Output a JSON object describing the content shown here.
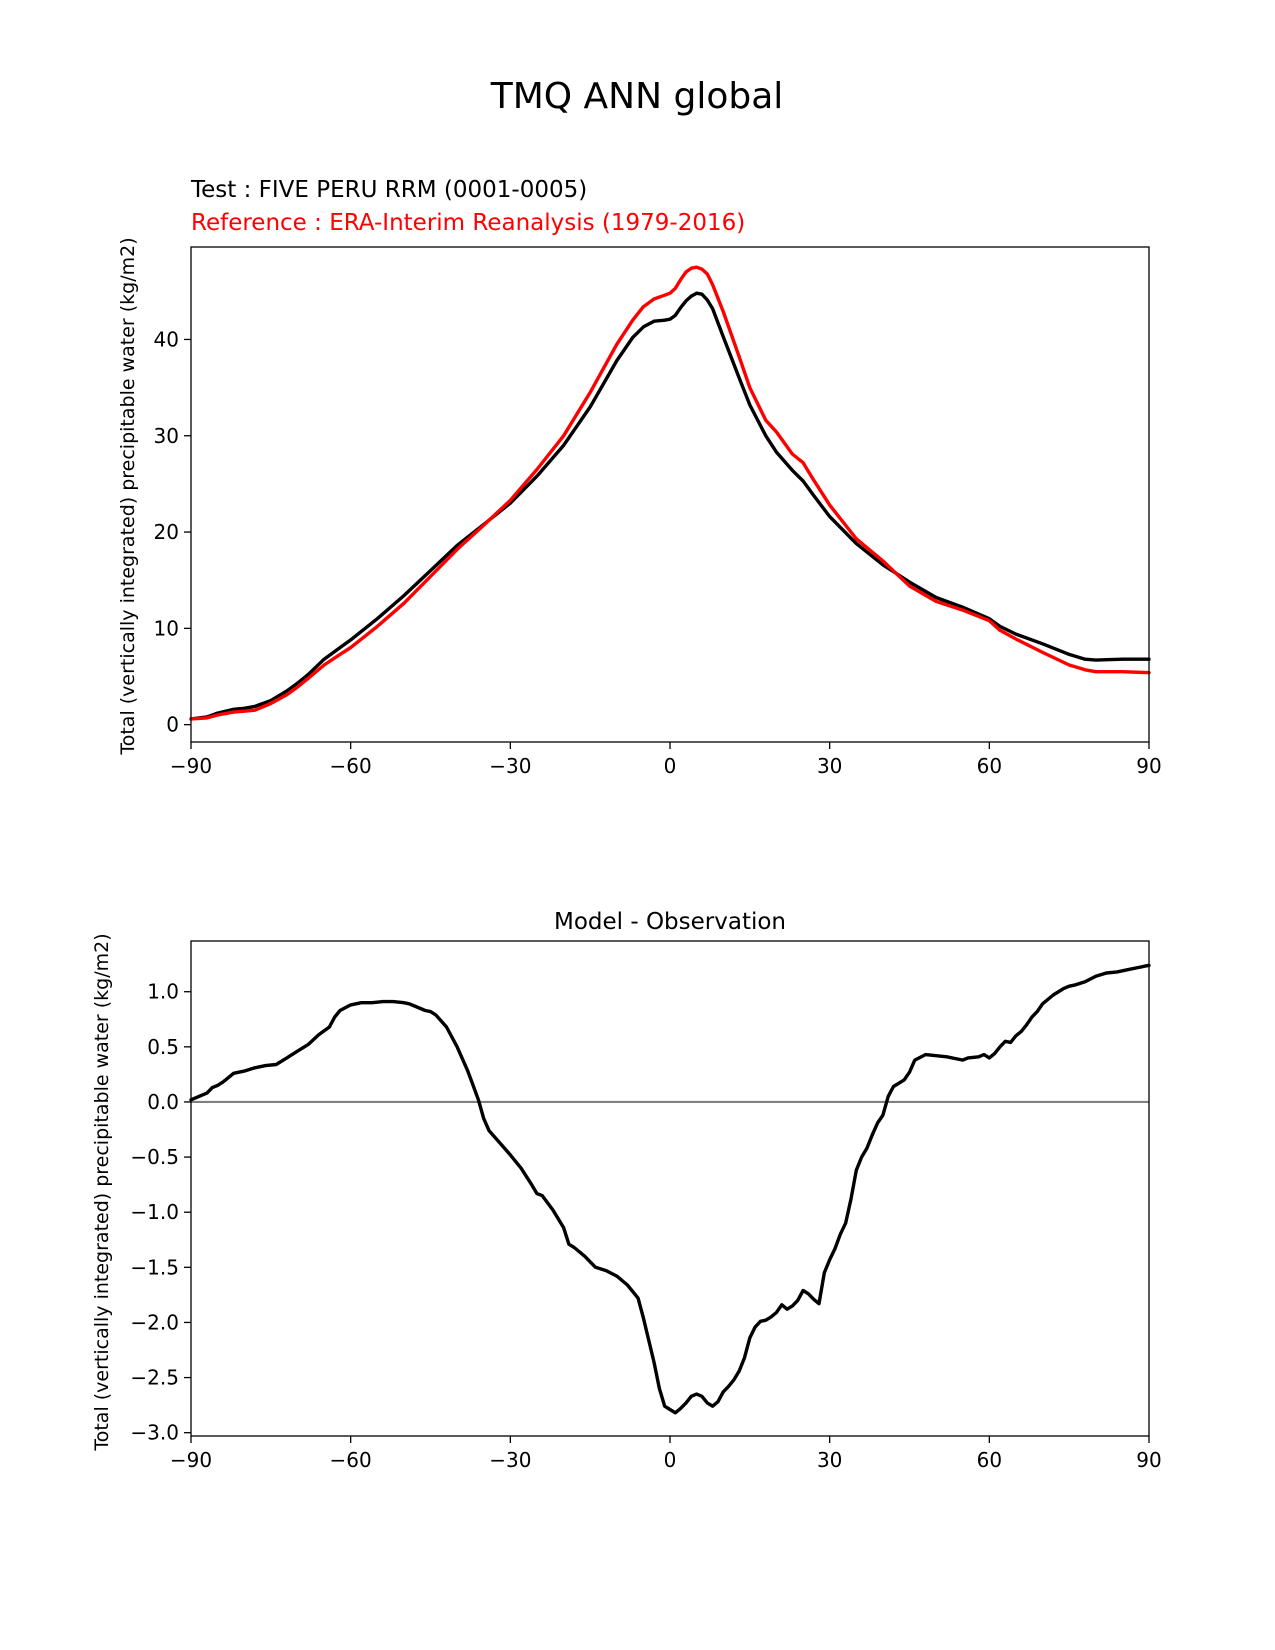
{
  "figure": {
    "title": "TMQ ANN global"
  },
  "chart_data": [
    {
      "type": "line",
      "test_label": "Test : FIVE PERU RRM (0001-0005)",
      "reference_label": "Reference : ERA-Interim Reanalysis (1979-2016)",
      "xlabel": "",
      "ylabel": "Total (vertically integrated) precipitable water (kg/m2)",
      "xlim": [
        -90,
        90
      ],
      "ylim": [
        -1.8,
        49.6
      ],
      "xticks": [
        -90,
        -60,
        -30,
        0,
        30,
        60,
        90
      ],
      "xtick_labels": [
        "−90",
        "−60",
        "−30",
        "0",
        "30",
        "60",
        "90"
      ],
      "yticks": [
        0,
        10,
        20,
        30,
        40
      ],
      "ytick_labels": [
        "0",
        "10",
        "20",
        "30",
        "40"
      ],
      "series": [
        {
          "name": "Test",
          "color": "#000000",
          "x": [
            -90,
            -87,
            -85,
            -82,
            -80,
            -78,
            -75,
            -72,
            -70,
            -68,
            -65,
            -62,
            -60,
            -55,
            -50,
            -45,
            -40,
            -35,
            -30,
            -25,
            -20,
            -15,
            -10,
            -7,
            -5,
            -3,
            -1,
            0,
            1,
            2,
            3,
            4,
            5,
            6,
            7,
            8,
            10,
            13,
            15,
            18,
            20,
            23,
            25,
            27,
            30,
            35,
            40,
            45,
            50,
            55,
            60,
            62,
            65,
            70,
            75,
            78,
            80,
            85,
            90
          ],
          "y": [
            0.6,
            0.8,
            1.2,
            1.6,
            1.7,
            1.9,
            2.5,
            3.5,
            4.3,
            5.2,
            6.8,
            8.0,
            8.8,
            11.0,
            13.4,
            16.0,
            18.6,
            20.8,
            23.0,
            25.8,
            29.0,
            33.0,
            37.8,
            40.2,
            41.3,
            41.9,
            42.0,
            42.1,
            42.5,
            43.3,
            44.0,
            44.5,
            44.8,
            44.7,
            44.1,
            43.2,
            40.3,
            36.0,
            33.2,
            30.0,
            28.3,
            26.4,
            25.3,
            23.8,
            21.6,
            18.8,
            16.6,
            14.8,
            13.2,
            12.2,
            11.0,
            10.2,
            9.4,
            8.4,
            7.3,
            6.8,
            6.7,
            6.8,
            6.8
          ]
        },
        {
          "name": "Reference",
          "color": "#ff0000",
          "x": [
            -90,
            -87,
            -85,
            -82,
            -80,
            -78,
            -75,
            -72,
            -70,
            -68,
            -65,
            -62,
            -60,
            -55,
            -50,
            -45,
            -40,
            -35,
            -30,
            -25,
            -20,
            -15,
            -10,
            -7,
            -5,
            -3,
            -1,
            0,
            1,
            2,
            3,
            4,
            5,
            6,
            7,
            8,
            10,
            13,
            15,
            18,
            20,
            23,
            25,
            27,
            30,
            35,
            40,
            45,
            50,
            55,
            60,
            62,
            65,
            70,
            75,
            78,
            80,
            85,
            90
          ],
          "y": [
            0.6,
            0.7,
            1.0,
            1.3,
            1.4,
            1.5,
            2.2,
            3.1,
            3.9,
            4.8,
            6.2,
            7.3,
            8.0,
            10.2,
            12.6,
            15.4,
            18.2,
            20.7,
            23.3,
            26.5,
            30.0,
            34.5,
            39.5,
            42.0,
            43.4,
            44.2,
            44.6,
            44.8,
            45.3,
            46.2,
            47.0,
            47.4,
            47.5,
            47.3,
            46.8,
            45.7,
            42.9,
            38.2,
            35.0,
            31.6,
            30.4,
            28.1,
            27.2,
            25.4,
            22.8,
            19.3,
            17.0,
            14.4,
            12.8,
            11.9,
            10.8,
            9.8,
            8.9,
            7.5,
            6.2,
            5.7,
            5.5,
            5.5,
            5.4
          ]
        }
      ]
    },
    {
      "type": "line",
      "title": "Model - Observation",
      "xlabel": "",
      "ylabel": "Total (vertically integrated) precipitable water (kg/m2)",
      "xlim": [
        -90,
        90
      ],
      "ylim": [
        -3.03,
        1.46
      ],
      "xticks": [
        -90,
        -60,
        -30,
        0,
        30,
        60,
        90
      ],
      "xtick_labels": [
        "−90",
        "−60",
        "−30",
        "0",
        "30",
        "60",
        "90"
      ],
      "yticks": [
        1.0,
        0.5,
        0.0,
        -0.5,
        -1.0,
        -1.5,
        -2.0,
        -2.5,
        -3.0
      ],
      "ytick_labels": [
        "1.0",
        "0.5",
        "0.0",
        "−0.5",
        "−1.0",
        "−1.5",
        "−2.0",
        "−2.5",
        "−3.0"
      ],
      "zero_line": {
        "y": 0,
        "color": "#808080"
      },
      "series": [
        {
          "name": "Model - Observation",
          "color": "#000000",
          "x": [
            -90,
            -88,
            -87,
            -86,
            -85,
            -84,
            -83,
            -82,
            -80,
            -78,
            -76,
            -74,
            -72,
            -70,
            -68,
            -66,
            -64,
            -63,
            -62,
            -60,
            -58,
            -56,
            -54,
            -52,
            -50,
            -49,
            -48,
            -46,
            -45,
            -44,
            -42,
            -40,
            -38,
            -37,
            -36,
            -35,
            -34,
            -32,
            -30,
            -28,
            -26,
            -25,
            -24,
            -22,
            -20,
            -19,
            -18,
            -16,
            -14,
            -12,
            -10,
            -8,
            -6,
            -5,
            -4,
            -3,
            -2,
            -1,
            0,
            1,
            2,
            3,
            4,
            5,
            6,
            7,
            8,
            9,
            10,
            11,
            12,
            13,
            14,
            15,
            16,
            17,
            18,
            19,
            20,
            21,
            22,
            23,
            24,
            25,
            26,
            27,
            28,
            29,
            30,
            31,
            32,
            33,
            34,
            35,
            36,
            37,
            38,
            39,
            40,
            41,
            42,
            44,
            45,
            46,
            48,
            50,
            52,
            54,
            55,
            56,
            58,
            59,
            60,
            61,
            62,
            63,
            64,
            65,
            66,
            67,
            68,
            69,
            70,
            72,
            74,
            75,
            76,
            78,
            80,
            82,
            84,
            86,
            88,
            90
          ],
          "y": [
            0.02,
            0.06,
            0.08,
            0.13,
            0.15,
            0.18,
            0.22,
            0.26,
            0.28,
            0.31,
            0.33,
            0.34,
            0.4,
            0.46,
            0.52,
            0.61,
            0.68,
            0.77,
            0.83,
            0.88,
            0.9,
            0.9,
            0.91,
            0.91,
            0.9,
            0.89,
            0.87,
            0.83,
            0.82,
            0.79,
            0.68,
            0.5,
            0.28,
            0.15,
            0.02,
            -0.15,
            -0.26,
            -0.37,
            -0.48,
            -0.6,
            -0.75,
            -0.83,
            -0.85,
            -0.98,
            -1.14,
            -1.29,
            -1.32,
            -1.4,
            -1.5,
            -1.53,
            -1.58,
            -1.66,
            -1.78,
            -1.96,
            -2.16,
            -2.36,
            -2.6,
            -2.76,
            -2.79,
            -2.82,
            -2.78,
            -2.73,
            -2.67,
            -2.65,
            -2.67,
            -2.73,
            -2.76,
            -2.72,
            -2.63,
            -2.58,
            -2.52,
            -2.44,
            -2.32,
            -2.14,
            -2.04,
            -1.99,
            -1.98,
            -1.95,
            -1.91,
            -1.84,
            -1.88,
            -1.85,
            -1.8,
            -1.71,
            -1.74,
            -1.79,
            -1.83,
            -1.55,
            -1.43,
            -1.33,
            -1.2,
            -1.1,
            -0.88,
            -0.62,
            -0.5,
            -0.42,
            -0.3,
            -0.19,
            -0.12,
            0.05,
            0.14,
            0.2,
            0.27,
            0.38,
            0.43,
            0.42,
            0.41,
            0.39,
            0.38,
            0.4,
            0.41,
            0.43,
            0.4,
            0.44,
            0.5,
            0.55,
            0.54,
            0.6,
            0.64,
            0.7,
            0.77,
            0.82,
            0.89,
            0.97,
            1.03,
            1.05,
            1.06,
            1.09,
            1.14,
            1.17,
            1.18,
            1.2,
            1.22,
            1.24
          ]
        }
      ]
    }
  ]
}
